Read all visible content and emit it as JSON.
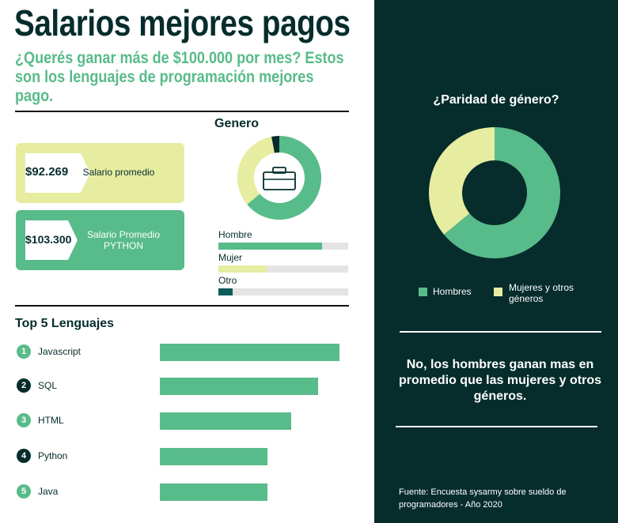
{
  "title": "Salarios mejores pagos",
  "subtitle": "¿Querés ganar más de $100.000 por mes? Estos son los lenguajes de programación mejores pago.",
  "colors": {
    "dark": "#062c2c",
    "green": "#58bb8a",
    "yellow": "#e6eda0",
    "teal": "#0c5c5c"
  },
  "cards": [
    {
      "value": "$92.269",
      "label": "Salario promedio"
    },
    {
      "value": "$103.300",
      "label": "Salario Promedio PYTHON"
    }
  ],
  "chart_data": [
    {
      "type": "pie",
      "title": "Genero",
      "center_icon": "briefcase-icon",
      "labels": [
        "Hombre",
        "Mujer",
        "Otro"
      ],
      "values": [
        64,
        33,
        3
      ]
    },
    {
      "type": "bar",
      "orientation": "horizontal",
      "categories": [
        "Hombre",
        "Mujer",
        "Otro"
      ],
      "values": [
        80,
        37,
        11
      ],
      "xlim": [
        0,
        100
      ]
    },
    {
      "type": "bar",
      "orientation": "horizontal",
      "title": "Top 5 Lenguajes",
      "ranks": [
        "1",
        "2",
        "3",
        "4",
        "5"
      ],
      "categories": [
        "Javascript",
        "SQL",
        "HTML",
        "Python",
        "Java"
      ],
      "values": [
        100,
        88,
        73,
        60,
        60
      ],
      "xlim": [
        0,
        100
      ]
    },
    {
      "type": "pie",
      "title": "¿Paridad de género?",
      "labels": [
        "Hombres",
        "Mujeres y otros géneros"
      ],
      "values": [
        64,
        36
      ]
    }
  ],
  "right_panel": {
    "statement": "No, los hombres ganan mas en promedio que las mujeres y otros géneros.",
    "source": "Fuente: Encuesta sysarmy sobre sueldo de programadores - Año 2020"
  }
}
